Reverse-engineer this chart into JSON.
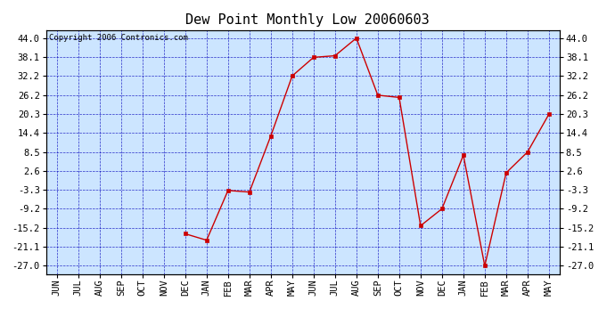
{
  "title": "Dew Point Monthly Low 20060603",
  "copyright": "Copyright 2006 Contronics.com",
  "x_labels": [
    "JUN",
    "JUL",
    "AUG",
    "SEP",
    "OCT",
    "NOV",
    "DEC",
    "JAN",
    "FEB",
    "MAR",
    "APR",
    "MAY",
    "JUN",
    "JUL",
    "AUG",
    "SEP",
    "OCT",
    "NOV",
    "DEC",
    "JAN",
    "FEB",
    "MAR",
    "APR",
    "MAY"
  ],
  "y_values": [
    null,
    null,
    null,
    null,
    null,
    null,
    -17.0,
    -19.0,
    -3.5,
    -4.0,
    13.5,
    32.2,
    38.0,
    38.5,
    44.0,
    26.2,
    25.5,
    -14.5,
    -9.2,
    7.5,
    -27.0,
    2.0,
    8.5,
    20.3
  ],
  "yticks": [
    44.0,
    38.1,
    32.2,
    26.2,
    20.3,
    14.4,
    8.5,
    2.6,
    -3.3,
    -9.2,
    -15.2,
    -21.1,
    -27.0
  ],
  "ylim": [
    -29.5,
    46.5
  ],
  "line_color": "#cc0000",
  "marker_color": "#cc0000",
  "bg_color": "#cce5ff",
  "outer_bg": "#ffffff",
  "grid_color": "#0000bb",
  "title_fontsize": 11,
  "tick_fontsize": 7.5,
  "copyright_fontsize": 6.5
}
